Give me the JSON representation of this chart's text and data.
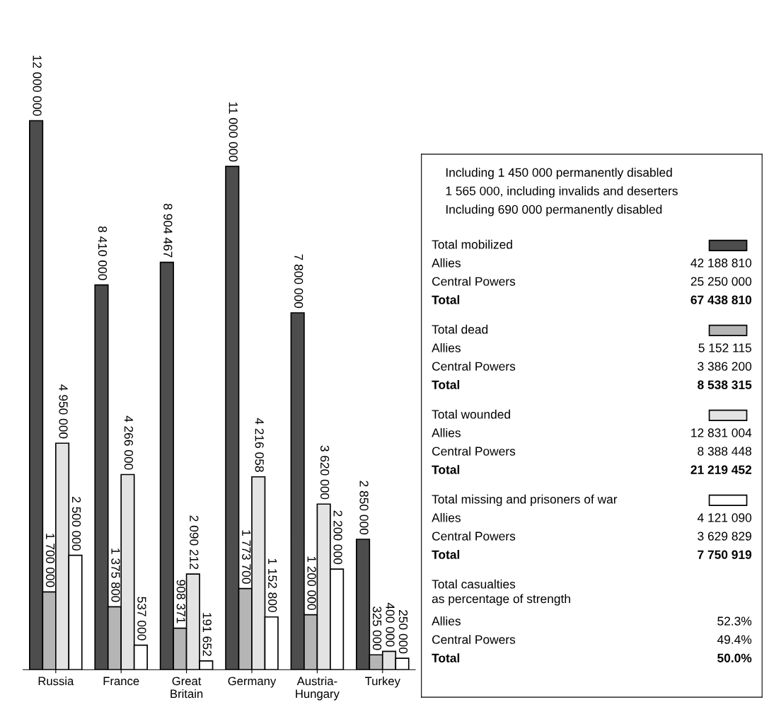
{
  "chart_data": [
    {
      "type": "bar",
      "categories": [
        "Russia",
        "France",
        "Great\nBritain",
        "Germany",
        "Austria-\nHungary",
        "Turkey"
      ],
      "tick_labels": "x",
      "series": [
        {
          "color": "#4d4d4d",
          "values": [
            12000000,
            8410000,
            8904467,
            11000000,
            7800000,
            2850000
          ],
          "value_labels": [
            "12 000 000",
            "8 410 000",
            "8 904 467",
            "11 000 000",
            "7 800 000",
            "2 850 000"
          ]
        },
        {
          "color": "#b5b5b5",
          "values": [
            1700000,
            1375800,
            908371,
            1773700,
            1200000,
            325000
          ],
          "value_labels": [
            "1 700 000",
            "1 375 800",
            "908 371",
            "1 773 700",
            "1 200 000",
            "325 000"
          ]
        },
        {
          "color": "#e3e3e3",
          "values": [
            4950000,
            4266000,
            2090212,
            4216058,
            3620000,
            400000
          ],
          "value_labels": [
            "4 950 000",
            "4 266 000",
            "2 090 212",
            "4 216 058",
            "3 620 000",
            "400 000"
          ]
        },
        {
          "color": "#ffffff",
          "values": [
            2500000,
            537000,
            191652,
            1152800,
            2200000,
            250000
          ],
          "value_labels": [
            "2 500 000",
            "537 000",
            "191 652",
            "1 152 800",
            "2 200 000",
            "250 000"
          ]
        }
      ]
    },
    {
      "type": "other",
      "annotations": [
        "Including 1 450 000 permanently disabled",
        "1 565 000, including invalids and deserters",
        "Including 690 000 permanently disabled"
      ],
      "categories": [
        "Allies",
        "Central Powers",
        "Total"
      ],
      "series": [
        {
          "name": "Total mobilized",
          "values": [
            42188810,
            25250000,
            67438810
          ],
          "value_labels": [
            "42 188 810",
            "25 250 000",
            "67 438 810"
          ]
        },
        {
          "name": "Total dead",
          "values": [
            5152115,
            3386200,
            8538315
          ],
          "value_labels": [
            "5 152 115",
            "3 386 200",
            "8 538 315"
          ]
        },
        {
          "name": "Total wounded",
          "values": [
            12831004,
            8388448,
            21219452
          ],
          "value_labels": [
            "12 831 004",
            "8 388 448",
            "21 219 452"
          ]
        },
        {
          "name": "Total missing and prisoners of war",
          "values": [
            4121090,
            3629829,
            7750919
          ],
          "value_labels": [
            "4 121 090",
            "3 629 829",
            "7 750 919"
          ]
        },
        {
          "name": "Total casualties\nas percentage of strength",
          "values": [
            52.3,
            49.4,
            50.0
          ],
          "value_labels": [
            "52.3%",
            "49.4%",
            "50.0%"
          ]
        }
      ]
    }
  ]
}
